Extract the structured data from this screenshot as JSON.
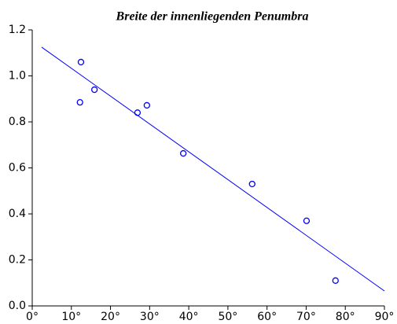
{
  "chart_data": {
    "type": "scatter",
    "title": "Breite der innenliegenden Penumbra",
    "x": [
      12.45,
      12.2,
      15.9,
      26.9,
      29.3,
      38.6,
      56.2,
      70.1,
      77.5
    ],
    "values": [
      1.06,
      0.885,
      0.94,
      0.84,
      0.872,
      0.663,
      0.53,
      0.37,
      0.11
    ],
    "color": "#0000ff",
    "fit": {
      "x": [
        2.4,
        90
      ],
      "values": [
        1.125,
        0.065
      ],
      "color": "#0000ff"
    },
    "xlim": [
      0,
      90
    ],
    "xticks": [
      {
        "value": 0,
        "label": "0°"
      },
      {
        "value": 10,
        "label": "10°"
      },
      {
        "value": 20,
        "label": "20°"
      },
      {
        "value": 30,
        "label": "30°"
      },
      {
        "value": 40,
        "label": "40°"
      },
      {
        "value": 50,
        "label": "50°"
      },
      {
        "value": 60,
        "label": "60°"
      },
      {
        "value": 70,
        "label": "70°"
      },
      {
        "value": 80,
        "label": "80°"
      },
      {
        "value": 90,
        "label": "90°"
      }
    ],
    "ylim": [
      0,
      1.2
    ],
    "yticks": [
      {
        "value": 0,
        "label": "0.0"
      },
      0.2,
      0.4,
      0.6,
      0.8,
      {
        "value": 1,
        "label": "1.0"
      },
      1.2
    ]
  }
}
